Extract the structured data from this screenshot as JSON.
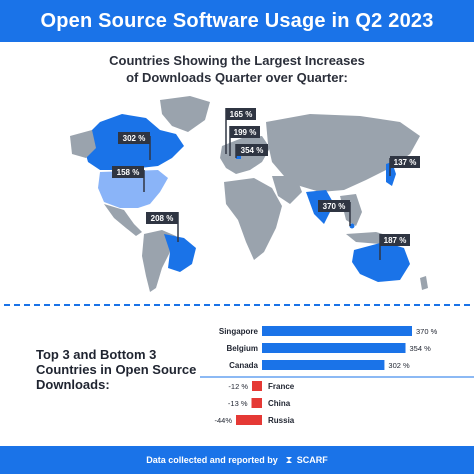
{
  "header": {
    "title": "Open Source Software Usage in Q2 2023"
  },
  "map_section": {
    "title_line1": "Countries Showing the Largest Increases",
    "title_line2": "of Downloads Quarter over Quarter:",
    "flags": [
      {
        "label": "302 %",
        "country": "Canada"
      },
      {
        "label": "158 %",
        "country": "United States"
      },
      {
        "label": "208 %",
        "country": "Brazil"
      },
      {
        "label": "165 %",
        "country": "Europe"
      },
      {
        "label": "199 %",
        "country": "Europe"
      },
      {
        "label": "354 %",
        "country": "Belgium"
      },
      {
        "label": "137 %",
        "country": "Japan"
      },
      {
        "label": "370 %",
        "country": "Singapore"
      },
      {
        "label": "187 %",
        "country": "Australia"
      }
    ],
    "colors": {
      "highlight": "#1a73e8",
      "light_highlight": "#8ab4f8",
      "land": "#9aa3ad",
      "flag": "#2f3542"
    }
  },
  "bottom_section": {
    "label_line1": "Top 3 and Bottom 3",
    "label_line2": "Countries in Open Source",
    "label_line3": "Downloads:"
  },
  "chart_data": {
    "type": "bar",
    "orientation": "horizontal",
    "title": "Top 3 and Bottom 3 Countries in Open Source Downloads:",
    "categories": [
      "Singapore",
      "Belgium",
      "Canada",
      "France",
      "China",
      "Russia"
    ],
    "values": [
      370,
      354,
      302,
      -12,
      -13,
      -44
    ],
    "value_labels": [
      "370 %",
      "354 %",
      "302 %",
      "-12 %",
      "-13 %",
      "-44%"
    ],
    "colors": {
      "positive": "#1a73e8",
      "negative": "#e53935"
    }
  },
  "footer": {
    "text": "Data collected and reported by",
    "brand": "SCARF"
  }
}
